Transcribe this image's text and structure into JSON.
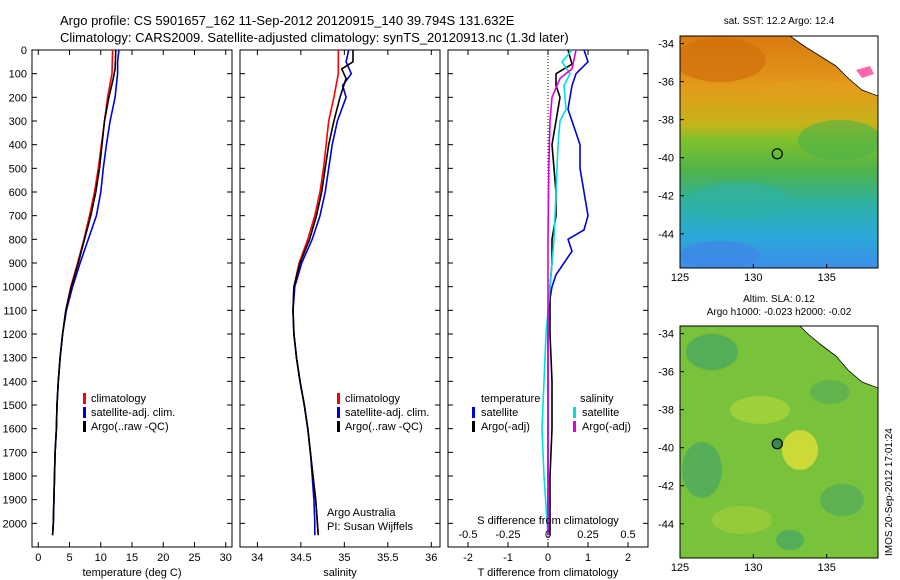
{
  "header": {
    "line1": "Argo profile: CS 5901657_162 11-Sep-2012 20120915_140 39.794S 131.632E",
    "line2": "Climatology: CARS2009. Satellite-adjusted climatology: synTS_20120913.nc (1.3d later)"
  },
  "credits": {
    "line1": "Argo Australia",
    "line2": "PI: Susan Wijffels"
  },
  "watermark": "IMOS 20-Sep-2012 17:01:24",
  "colors": {
    "climatology": "#ff0000",
    "satellite": "#0000dd",
    "argo": "#000000",
    "satellite_salinity": "#00e0e0",
    "argo_salinity": "#dd00dd"
  },
  "chart_data": [
    {
      "type": "line",
      "id": "temperature",
      "xlabel": "temperature (deg C)",
      "ylabel": "",
      "xlim": [
        -1,
        31
      ],
      "ylim": [
        2100,
        0
      ],
      "xticks": [
        0,
        5,
        10,
        15,
        20,
        25,
        30
      ],
      "yticks": [
        0,
        100,
        200,
        300,
        400,
        500,
        600,
        700,
        800,
        900,
        1000,
        1100,
        1200,
        1300,
        1400,
        1500,
        1600,
        1700,
        1800,
        1900,
        2000
      ],
      "legend": [
        "climatology",
        "satellite-adj. clim.",
        "Argo(..raw -QC)"
      ],
      "series": [
        {
          "name": "climatology",
          "color": "#ff0000",
          "points": [
            [
              11.9,
              0
            ],
            [
              11.8,
              100
            ],
            [
              11.1,
              200
            ],
            [
              10.6,
              300
            ],
            [
              10.1,
              400
            ],
            [
              9.6,
              500
            ],
            [
              9.0,
              600
            ],
            [
              8.2,
              700
            ],
            [
              7.3,
              800
            ],
            [
              6.3,
              900
            ],
            [
              5.2,
              1000
            ],
            [
              4.4,
              1100
            ],
            [
              3.9,
              1200
            ],
            [
              3.5,
              1300
            ],
            [
              3.2,
              1400
            ],
            [
              3.0,
              1500
            ],
            [
              2.9,
              1600
            ],
            [
              2.7,
              1700
            ],
            [
              2.6,
              1800
            ],
            [
              2.5,
              1900
            ],
            [
              2.4,
              2000
            ],
            [
              2.3,
              2050
            ]
          ]
        },
        {
          "name": "satellite-adj. clim.",
          "color": "#0000dd",
          "points": [
            [
              12.9,
              0
            ],
            [
              12.7,
              50
            ],
            [
              12.7,
              100
            ],
            [
              12.3,
              200
            ],
            [
              11.5,
              300
            ],
            [
              10.9,
              400
            ],
            [
              10.4,
              500
            ],
            [
              10.0,
              600
            ],
            [
              9.3,
              700
            ],
            [
              8.0,
              800
            ],
            [
              6.7,
              900
            ],
            [
              5.5,
              1000
            ],
            [
              4.5,
              1100
            ],
            [
              3.9,
              1200
            ],
            [
              3.5,
              1300
            ],
            [
              3.2,
              1400
            ],
            [
              3.0,
              1500
            ],
            [
              2.9,
              1600
            ],
            [
              2.7,
              1700
            ],
            [
              2.6,
              1800
            ],
            [
              2.5,
              1900
            ],
            [
              2.4,
              2000
            ],
            [
              2.3,
              2050
            ]
          ]
        },
        {
          "name": "Argo(..raw -QC)",
          "color": "#000000",
          "points": [
            [
              12.4,
              0
            ],
            [
              12.3,
              80
            ],
            [
              12.0,
              120
            ],
            [
              11.3,
              200
            ],
            [
              10.6,
              300
            ],
            [
              10.2,
              400
            ],
            [
              9.8,
              500
            ],
            [
              9.2,
              600
            ],
            [
              8.4,
              700
            ],
            [
              7.4,
              800
            ],
            [
              6.4,
              900
            ],
            [
              5.3,
              1000
            ],
            [
              4.4,
              1100
            ],
            [
              3.9,
              1200
            ],
            [
              3.5,
              1300
            ],
            [
              3.2,
              1400
            ],
            [
              3.0,
              1500
            ],
            [
              2.9,
              1600
            ],
            [
              2.7,
              1700
            ],
            [
              2.6,
              1800
            ],
            [
              2.5,
              1900
            ],
            [
              2.4,
              2000
            ],
            [
              2.3,
              2050
            ]
          ]
        }
      ]
    },
    {
      "type": "line",
      "id": "salinity",
      "xlabel": "salinity",
      "ylabel": "",
      "xlim": [
        33.8,
        36.1
      ],
      "ylim": [
        2100,
        0
      ],
      "xticks": [
        34,
        34.5,
        35,
        35.5,
        36
      ],
      "legend": [
        "climatology",
        "satellite-adj. clim.",
        "Argo(..raw -QC)"
      ],
      "series": [
        {
          "name": "climatology",
          "color": "#ff0000",
          "points": [
            [
              34.93,
              0
            ],
            [
              34.93,
              100
            ],
            [
              34.88,
              200
            ],
            [
              34.82,
              300
            ],
            [
              34.79,
              400
            ],
            [
              34.76,
              500
            ],
            [
              34.72,
              600
            ],
            [
              34.66,
              700
            ],
            [
              34.58,
              800
            ],
            [
              34.48,
              900
            ],
            [
              34.42,
              1000
            ],
            [
              34.41,
              1100
            ],
            [
              34.42,
              1200
            ],
            [
              34.45,
              1300
            ],
            [
              34.49,
              1400
            ],
            [
              34.54,
              1500
            ],
            [
              34.58,
              1600
            ],
            [
              34.61,
              1700
            ],
            [
              34.64,
              1800
            ],
            [
              34.67,
              1900
            ],
            [
              34.69,
              2000
            ],
            [
              34.7,
              2050
            ]
          ]
        },
        {
          "name": "satellite-adj. clim.",
          "color": "#0000dd",
          "points": [
            [
              35.05,
              0
            ],
            [
              35.02,
              50
            ],
            [
              35.08,
              100
            ],
            [
              34.98,
              150
            ],
            [
              35.02,
              200
            ],
            [
              34.92,
              300
            ],
            [
              34.86,
              400
            ],
            [
              34.82,
              500
            ],
            [
              34.78,
              600
            ],
            [
              34.72,
              700
            ],
            [
              34.63,
              800
            ],
            [
              34.51,
              900
            ],
            [
              34.43,
              1000
            ],
            [
              34.41,
              1100
            ],
            [
              34.42,
              1200
            ],
            [
              34.45,
              1300
            ],
            [
              34.49,
              1400
            ],
            [
              34.54,
              1500
            ],
            [
              34.58,
              1600
            ],
            [
              34.61,
              1700
            ],
            [
              34.63,
              1800
            ],
            [
              34.65,
              1900
            ],
            [
              34.66,
              2000
            ],
            [
              34.66,
              2050
            ]
          ]
        },
        {
          "name": "Argo(..raw -QC)",
          "color": "#000000",
          "points": [
            [
              35.1,
              0
            ],
            [
              35.1,
              50
            ],
            [
              34.97,
              80
            ],
            [
              35.02,
              120
            ],
            [
              34.95,
              200
            ],
            [
              34.88,
              300
            ],
            [
              34.82,
              400
            ],
            [
              34.78,
              500
            ],
            [
              34.74,
              600
            ],
            [
              34.68,
              700
            ],
            [
              34.6,
              800
            ],
            [
              34.49,
              900
            ],
            [
              34.42,
              1000
            ],
            [
              34.41,
              1100
            ],
            [
              34.42,
              1200
            ],
            [
              34.45,
              1300
            ],
            [
              34.49,
              1400
            ],
            [
              34.54,
              1500
            ],
            [
              34.58,
              1600
            ],
            [
              34.61,
              1700
            ],
            [
              34.64,
              1800
            ],
            [
              34.67,
              1900
            ],
            [
              34.69,
              2000
            ],
            [
              34.7,
              2050
            ]
          ]
        }
      ]
    },
    {
      "type": "line",
      "id": "difference",
      "xlabel": "T difference from climatology",
      "xlabel2": "S difference from climatology",
      "ylabel": "",
      "xlim": [
        -2.5,
        2.5
      ],
      "ylim": [
        2100,
        0
      ],
      "xticks": [
        -2,
        -1,
        0,
        1,
        2
      ],
      "xticks_s": [
        "-0.5",
        "-0.25",
        "0",
        "0.25",
        "0.5"
      ],
      "legend_temperature_title": "temperature",
      "legend_salinity_title": "salinity",
      "legend_temperature": [
        "satellite",
        "Argo(-adj)"
      ],
      "legend_salinity": [
        "satellite",
        "Argo(-adj)"
      ],
      "series": [
        {
          "name": "temperature satellite",
          "color": "#0000dd",
          "points": [
            [
              0.9,
              0
            ],
            [
              1.0,
              50
            ],
            [
              0.7,
              100
            ],
            [
              0.6,
              150
            ],
            [
              0.5,
              250
            ],
            [
              0.7,
              350
            ],
            [
              0.8,
              400
            ],
            [
              0.8,
              500
            ],
            [
              0.9,
              600
            ],
            [
              1.0,
              700
            ],
            [
              0.9,
              760
            ],
            [
              0.5,
              800
            ],
            [
              0.6,
              850
            ],
            [
              0.4,
              900
            ],
            [
              0.2,
              950
            ],
            [
              0.1,
              1000
            ],
            [
              0,
              1100
            ],
            [
              0,
              1200
            ],
            [
              0,
              2050
            ]
          ]
        },
        {
          "name": "temperature Argo(-adj)",
          "color": "#000000",
          "points": [
            [
              0.5,
              0
            ],
            [
              0.6,
              60
            ],
            [
              0.2,
              100
            ],
            [
              0.2,
              150
            ],
            [
              0.3,
              200
            ],
            [
              0.2,
              300
            ],
            [
              0.1,
              400
            ],
            [
              0.2,
              600
            ],
            [
              0.2,
              700
            ],
            [
              0.1,
              800
            ],
            [
              0.1,
              900
            ],
            [
              0.05,
              1000
            ],
            [
              0.05,
              1200
            ],
            [
              0.1,
              1400
            ],
            [
              0.1,
              1600
            ],
            [
              0.05,
              1800
            ],
            [
              0.05,
              2050
            ]
          ]
        },
        {
          "name": "salinity satellite",
          "color": "#00e0e0",
          "points": [
            [
              0.6,
              0
            ],
            [
              0.35,
              50
            ],
            [
              0.55,
              100
            ],
            [
              0.4,
              150
            ],
            [
              0.45,
              250
            ],
            [
              0.3,
              300
            ],
            [
              0.25,
              400
            ],
            [
              0.2,
              600
            ],
            [
              0.15,
              800
            ],
            [
              0.1,
              900
            ],
            [
              0.05,
              1000
            ],
            [
              0,
              1100
            ],
            [
              -0.05,
              1200
            ],
            [
              -0.1,
              1400
            ],
            [
              -0.15,
              1600
            ],
            [
              -0.1,
              1800
            ],
            [
              0,
              2050
            ]
          ]
        },
        {
          "name": "salinity Argo(-adj)",
          "color": "#dd00dd",
          "points": [
            [
              0.7,
              0
            ],
            [
              0.6,
              80
            ],
            [
              0.3,
              120
            ],
            [
              0.1,
              200
            ],
            [
              0.05,
              300
            ],
            [
              0.02,
              500
            ],
            [
              0,
              800
            ],
            [
              0,
              1000
            ],
            [
              0,
              1200
            ],
            [
              0,
              1400
            ],
            [
              0,
              1600
            ],
            [
              0,
              2050
            ]
          ]
        }
      ]
    },
    {
      "type": "heatmap",
      "id": "sst-map",
      "title": "sat. SST: 12.2 Argo: 12.4",
      "xticks": [
        125,
        130,
        135
      ],
      "yticks": [
        -34,
        -36,
        -38,
        -40,
        -42,
        -44
      ],
      "xlim": [
        125,
        138.5
      ],
      "ylim": [
        -45.8,
        -33.6
      ],
      "marker": {
        "lon": 131.632,
        "lat": -39.794
      }
    },
    {
      "type": "heatmap",
      "id": "sla-map",
      "title": "Altim. SLA: 0.12",
      "subtitle": "Argo h1000: -0.023 h2000: -0.02",
      "xticks": [
        125,
        130,
        135
      ],
      "yticks": [
        -34,
        -36,
        -38,
        -40,
        -42,
        -44
      ],
      "xlim": [
        125,
        138.5
      ],
      "ylim": [
        -45.8,
        -33.6
      ],
      "marker": {
        "lon": 131.632,
        "lat": -39.794
      }
    }
  ]
}
